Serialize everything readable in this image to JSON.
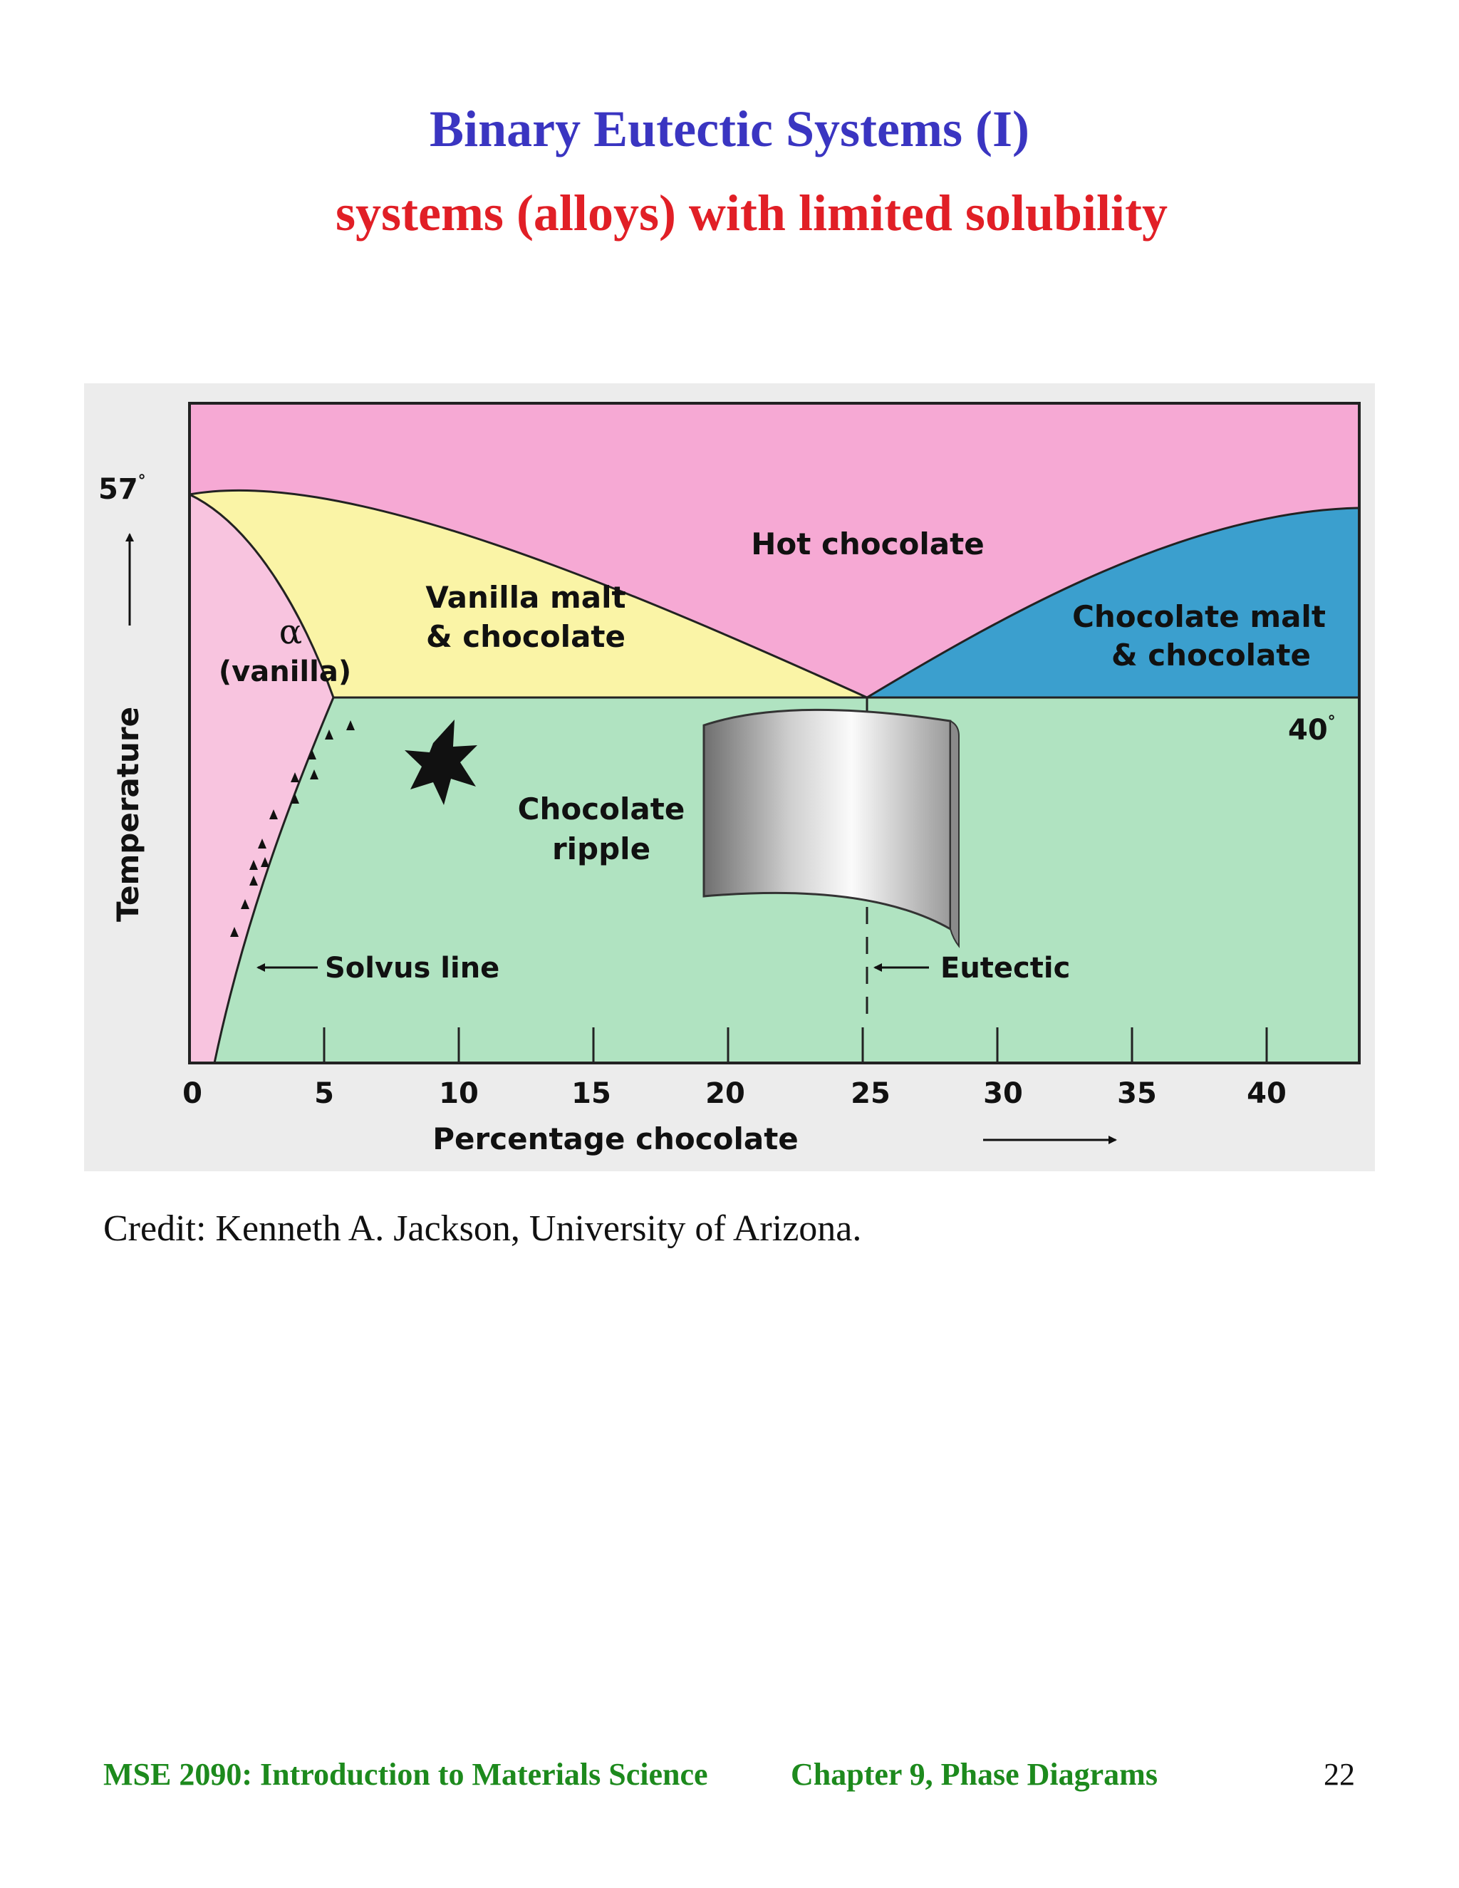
{
  "slide": {
    "title": "Binary Eutectic Systems (I)",
    "subtitle": "systems (alloys) with limited solubility",
    "credit": "Credit: Kenneth A. Jackson, University of Arizona."
  },
  "footer": {
    "course": "MSE 2090: Introduction to Materials Science",
    "chapter": "Chapter 9, Phase Diagrams",
    "page": "22"
  },
  "diagram": {
    "x_axis_label": "Percentage chocolate",
    "y_axis_label": "Temperature",
    "x_ticks": [
      "0",
      "5",
      "10",
      "15",
      "20",
      "25",
      "30",
      "35",
      "40"
    ],
    "temp_top": "57",
    "temp_eutectic": "40",
    "degree_symbol": "°",
    "regions": {
      "liquid": "Hot chocolate",
      "alpha_symbol": "α",
      "alpha_name": "(vanilla)",
      "left_two_phase_line1": "Vanilla malt",
      "left_two_phase_line2": "& chocolate",
      "right_two_phase_line1": "Chocolate malt",
      "right_two_phase_line2": "& chocolate",
      "solid_line1": "Chocolate",
      "solid_line2": "ripple"
    },
    "annotations": {
      "solvus": "Solvus line",
      "eutectic": "Eutectic"
    },
    "colors": {
      "liquid": "#f6a9d4",
      "alpha": "#f8c4df",
      "left_two_phase": "#faf4a6",
      "right_two_phase": "#3b9fce",
      "solid": "#b0e3c1"
    }
  }
}
